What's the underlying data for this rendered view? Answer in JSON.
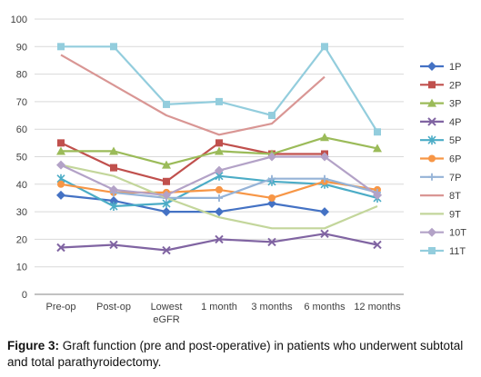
{
  "chart_data": {
    "type": "line",
    "categories": [
      "Pre-op",
      "Post-op",
      "Lowest eGFR",
      "1 month",
      "3 months",
      "6 months",
      "12 months"
    ],
    "ylim": [
      0,
      100
    ],
    "yticks": [
      0,
      10,
      20,
      30,
      40,
      50,
      60,
      70,
      80,
      90,
      100
    ],
    "grid": "horizontal",
    "legend_position": "right",
    "series": [
      {
        "name": "1P",
        "color": "#4472c4",
        "marker": "diamond",
        "values": [
          36,
          34,
          30,
          30,
          33,
          30,
          null
        ]
      },
      {
        "name": "2P",
        "color": "#c0504d",
        "marker": "square",
        "values": [
          55,
          46,
          41,
          55,
          51,
          51,
          null
        ]
      },
      {
        "name": "3P",
        "color": "#9bbb59",
        "marker": "triangle",
        "values": [
          52,
          52,
          47,
          52,
          51,
          57,
          53
        ]
      },
      {
        "name": "4P",
        "color": "#8064a2",
        "marker": "x",
        "values": [
          17,
          18,
          16,
          20,
          19,
          22,
          18
        ]
      },
      {
        "name": "5P",
        "color": "#4bacc6",
        "marker": "star",
        "values": [
          42,
          32,
          33,
          43,
          41,
          40,
          35
        ]
      },
      {
        "name": "6P",
        "color": "#f79646",
        "marker": "circle",
        "values": [
          40,
          37,
          37,
          38,
          35,
          41,
          38
        ]
      },
      {
        "name": "7P",
        "color": "#95b3d7",
        "marker": "plus",
        "values": [
          null,
          37,
          35,
          35,
          42,
          42,
          37
        ]
      },
      {
        "name": "8T",
        "color": "#d99694",
        "marker": "none",
        "values": [
          87,
          76,
          65,
          58,
          62,
          79,
          null
        ]
      },
      {
        "name": "9T",
        "color": "#c3d69b",
        "marker": "none",
        "values": [
          47,
          43,
          35,
          28,
          24,
          24,
          32
        ]
      },
      {
        "name": "10T",
        "color": "#b3a2c7",
        "marker": "diamond",
        "values": [
          47,
          38,
          36,
          45,
          50,
          50,
          36
        ]
      },
      {
        "name": "11T",
        "color": "#93cddd",
        "marker": "square",
        "values": [
          90,
          90,
          69,
          70,
          65,
          90,
          59
        ]
      }
    ]
  },
  "caption": {
    "label": "Figure 3:",
    "text": " Graft function (pre and post-operative) in patients who underwent subtotal and total parathyroidectomy."
  }
}
